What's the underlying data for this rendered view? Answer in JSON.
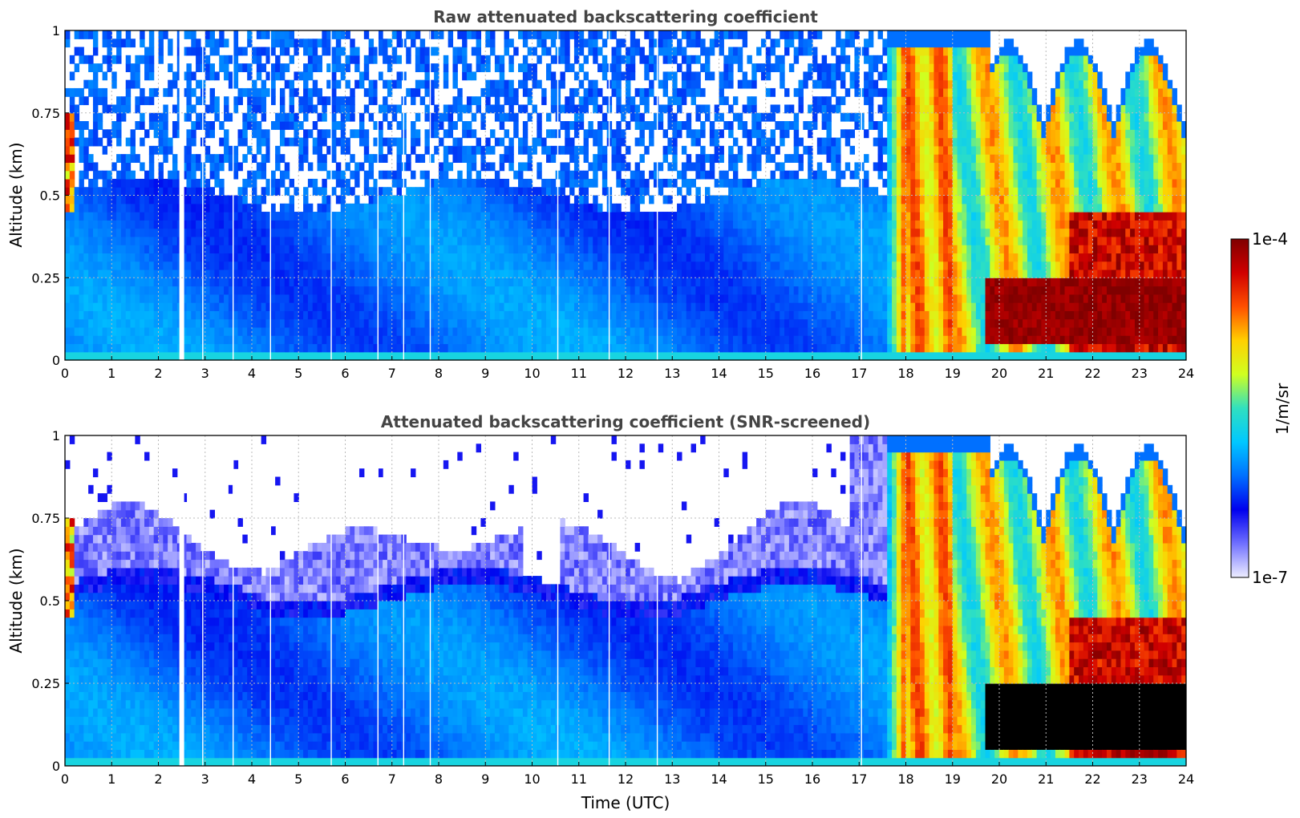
{
  "chart_data": [
    {
      "type": "heatmap",
      "title": "Raw attenuated backscattering coefficient",
      "xlabel": "",
      "ylabel": "Altitude (km)",
      "xlim": [
        0,
        24
      ],
      "ylim": [
        0,
        1
      ],
      "x_ticks": [
        "0",
        "1",
        "2",
        "3",
        "4",
        "5",
        "6",
        "7",
        "8",
        "9",
        "10",
        "11",
        "12",
        "13",
        "14",
        "15",
        "16",
        "17",
        "18",
        "19",
        "20",
        "21",
        "22",
        "23",
        "24"
      ],
      "y_ticks": [
        "0",
        "0.25",
        "0.5",
        "0.75",
        "1"
      ],
      "grid": true,
      "features": {
        "boundary_layer_top_km": 0.5,
        "noise_region_km": [
          0.5,
          1.0
        ],
        "data_gap_hours": [
          2.5
        ],
        "thin_gaps_hours": [
          2.95,
          3.6,
          4.4,
          5.7,
          6.7,
          7.25,
          7.82,
          10.55,
          11.65,
          12.68,
          17.05
        ],
        "cloud_onset_hours": 17.6,
        "low_strong_layer_hours": [
          19.7,
          24
        ],
        "low_strong_layer_km": [
          0.05,
          0.25
        ]
      }
    },
    {
      "type": "heatmap",
      "title": "Attenuated backscattering coefficient (SNR-screened)",
      "xlabel": "Time (UTC)",
      "ylabel": "Altitude (km)",
      "xlim": [
        0,
        24
      ],
      "ylim": [
        0,
        1
      ],
      "x_ticks": [
        "0",
        "1",
        "2",
        "3",
        "4",
        "5",
        "6",
        "7",
        "8",
        "9",
        "10",
        "11",
        "12",
        "13",
        "14",
        "15",
        "16",
        "17",
        "18",
        "19",
        "20",
        "21",
        "22",
        "23",
        "24"
      ],
      "y_ticks": [
        "0",
        "0.25",
        "0.5",
        "0.75",
        "1"
      ],
      "grid": true,
      "features": {
        "screened_top_km": [
          0.5,
          0.8
        ],
        "cloud_onset_hours": 17.6,
        "saturated_black_hours": [
          19.7,
          23.8
        ],
        "saturated_black_km": [
          0.0,
          0.25
        ]
      }
    }
  ],
  "colorbar": {
    "label": "1/m/sr",
    "max_label": "1e-4",
    "min_label": "1e-7",
    "scale": "log",
    "range": [
      1e-07,
      0.0001
    ]
  },
  "colors": {
    "colormap": [
      "#eeeeff",
      "#7070ff",
      "#0000ee",
      "#0070ff",
      "#00c8ff",
      "#30e0c0",
      "#d0ff20",
      "#ffd000",
      "#ff5000",
      "#d00000",
      "#800000"
    ],
    "title_color": "#444444",
    "grid_color": "#bbbbbb"
  }
}
